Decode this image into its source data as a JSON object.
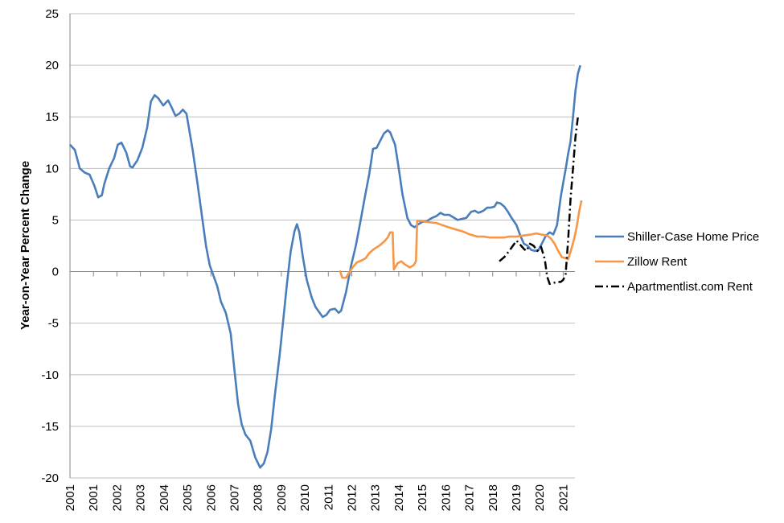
{
  "chart_data": {
    "type": "line",
    "title": "",
    "xlabel": "",
    "ylabel": "Year-on-Year Percent Change",
    "ylim": [
      -20,
      25
    ],
    "yticks": [
      25,
      20,
      15,
      10,
      5,
      0,
      -5,
      -10,
      -15,
      -20
    ],
    "yticklabels": [
      "25",
      "20",
      "15",
      "10",
      "5",
      "0",
      "-5",
      "-10",
      "-15",
      "-20"
    ],
    "xlim": [
      2001,
      2021.58
    ],
    "xticklabels": [
      "2001",
      "2001",
      "2002",
      "2003",
      "2004",
      "2005",
      "2006",
      "2007",
      "2008",
      "2009",
      "2010",
      "2011",
      "2012",
      "2013",
      "2014",
      "2015",
      "2016",
      "2017",
      "2018",
      "2019",
      "2020",
      "2021"
    ],
    "grid": true,
    "legend_position": "right",
    "series": [
      {
        "name": "Shiller-Case Home Price",
        "color": "#4a7ebb",
        "style": "solid",
        "points": [
          [
            2001.0,
            12.3
          ],
          [
            2001.2,
            11.8
          ],
          [
            2001.4,
            10.0
          ],
          [
            2001.6,
            9.6
          ],
          [
            2001.8,
            9.4
          ],
          [
            2002.0,
            8.3
          ],
          [
            2002.15,
            7.2
          ],
          [
            2002.3,
            7.4
          ],
          [
            2002.4,
            8.5
          ],
          [
            2002.6,
            10.0
          ],
          [
            2002.8,
            11.0
          ],
          [
            2002.95,
            12.3
          ],
          [
            2003.1,
            12.5
          ],
          [
            2003.3,
            11.5
          ],
          [
            2003.45,
            10.2
          ],
          [
            2003.55,
            10.1
          ],
          [
            2003.75,
            10.8
          ],
          [
            2003.95,
            12.0
          ],
          [
            2004.15,
            14.0
          ],
          [
            2004.3,
            16.5
          ],
          [
            2004.45,
            17.1
          ],
          [
            2004.6,
            16.8
          ],
          [
            2004.8,
            16.1
          ],
          [
            2005.0,
            16.6
          ],
          [
            2005.15,
            15.9
          ],
          [
            2005.3,
            15.1
          ],
          [
            2005.45,
            15.3
          ],
          [
            2005.6,
            15.7
          ],
          [
            2005.75,
            15.3
          ],
          [
            2005.85,
            13.9
          ],
          [
            2006.0,
            11.8
          ],
          [
            2006.2,
            8.5
          ],
          [
            2006.4,
            5.0
          ],
          [
            2006.55,
            2.4
          ],
          [
            2006.7,
            0.6
          ],
          [
            2006.85,
            -0.4
          ],
          [
            2007.0,
            -1.4
          ],
          [
            2007.15,
            -2.9
          ],
          [
            2007.35,
            -4.0
          ],
          [
            2007.55,
            -6.0
          ],
          [
            2007.7,
            -9.5
          ],
          [
            2007.85,
            -12.8
          ],
          [
            2008.0,
            -14.8
          ],
          [
            2008.15,
            -15.8
          ],
          [
            2008.35,
            -16.4
          ],
          [
            2008.55,
            -18.0
          ],
          [
            2008.75,
            -19.0
          ],
          [
            2008.9,
            -18.6
          ],
          [
            2009.05,
            -17.5
          ],
          [
            2009.2,
            -15.3
          ],
          [
            2009.35,
            -12.0
          ],
          [
            2009.55,
            -8.0
          ],
          [
            2009.7,
            -4.5
          ],
          [
            2009.85,
            -1.0
          ],
          [
            2010.0,
            2.0
          ],
          [
            2010.15,
            3.9
          ],
          [
            2010.25,
            4.6
          ],
          [
            2010.35,
            3.8
          ],
          [
            2010.5,
            1.3
          ],
          [
            2010.65,
            -0.8
          ],
          [
            2010.85,
            -2.5
          ],
          [
            2011.0,
            -3.4
          ],
          [
            2011.15,
            -3.9
          ],
          [
            2011.3,
            -4.4
          ],
          [
            2011.45,
            -4.2
          ],
          [
            2011.6,
            -3.7
          ],
          [
            2011.8,
            -3.6
          ],
          [
            2011.95,
            -4.0
          ],
          [
            2012.05,
            -3.8
          ],
          [
            2012.25,
            -2.0
          ],
          [
            2012.45,
            0.5
          ],
          [
            2012.65,
            2.5
          ],
          [
            2012.85,
            5.0
          ],
          [
            2013.0,
            7.0
          ],
          [
            2013.2,
            9.5
          ],
          [
            2013.35,
            11.9
          ],
          [
            2013.5,
            12.0
          ],
          [
            2013.65,
            12.7
          ],
          [
            2013.8,
            13.4
          ],
          [
            2013.95,
            13.7
          ],
          [
            2014.05,
            13.5
          ],
          [
            2014.25,
            12.3
          ],
          [
            2014.4,
            10.0
          ],
          [
            2014.55,
            7.5
          ],
          [
            2014.75,
            5.2
          ],
          [
            2014.9,
            4.5
          ],
          [
            2015.05,
            4.3
          ],
          [
            2015.2,
            4.6
          ],
          [
            2015.35,
            4.8
          ],
          [
            2015.55,
            4.9
          ],
          [
            2015.75,
            5.2
          ],
          [
            2015.95,
            5.4
          ],
          [
            2016.1,
            5.7
          ],
          [
            2016.25,
            5.5
          ],
          [
            2016.45,
            5.5
          ],
          [
            2016.6,
            5.3
          ],
          [
            2016.8,
            5.0
          ],
          [
            2016.95,
            5.1
          ],
          [
            2017.15,
            5.2
          ],
          [
            2017.35,
            5.8
          ],
          [
            2017.5,
            5.9
          ],
          [
            2017.65,
            5.7
          ],
          [
            2017.85,
            5.9
          ],
          [
            2018.0,
            6.2
          ],
          [
            2018.15,
            6.2
          ],
          [
            2018.3,
            6.3
          ],
          [
            2018.4,
            6.7
          ],
          [
            2018.55,
            6.6
          ],
          [
            2018.7,
            6.3
          ],
          [
            2018.85,
            5.8
          ],
          [
            2019.0,
            5.2
          ],
          [
            2019.2,
            4.5
          ],
          [
            2019.35,
            3.5
          ],
          [
            2019.5,
            2.7
          ],
          [
            2019.65,
            2.5
          ],
          [
            2019.8,
            2.1
          ],
          [
            2019.95,
            2.0
          ],
          [
            2020.1,
            2.1
          ],
          [
            2020.25,
            2.8
          ],
          [
            2020.4,
            3.5
          ],
          [
            2020.55,
            3.8
          ],
          [
            2020.7,
            3.6
          ],
          [
            2020.85,
            4.5
          ],
          [
            2021.0,
            7.2
          ],
          [
            2021.1,
            8.6
          ],
          [
            2021.2,
            9.9
          ],
          [
            2021.3,
            11.4
          ],
          [
            2021.4,
            12.6
          ],
          [
            2021.5,
            15.0
          ],
          [
            2021.6,
            17.5
          ],
          [
            2021.7,
            19.2
          ],
          [
            2021.8,
            20.0
          ]
        ]
      },
      {
        "name": "Zillow Rent",
        "color": "#f79646",
        "style": "solid",
        "points": [
          [
            2012.0,
            0.1
          ],
          [
            2012.1,
            -0.6
          ],
          [
            2012.25,
            -0.6
          ],
          [
            2012.4,
            0.0
          ],
          [
            2012.55,
            0.5
          ],
          [
            2012.7,
            0.9
          ],
          [
            2012.9,
            1.1
          ],
          [
            2013.05,
            1.3
          ],
          [
            2013.2,
            1.8
          ],
          [
            2013.4,
            2.2
          ],
          [
            2013.6,
            2.5
          ],
          [
            2013.8,
            2.9
          ],
          [
            2013.95,
            3.3
          ],
          [
            2014.05,
            3.8
          ],
          [
            2014.15,
            3.8
          ],
          [
            2014.2,
            0.2
          ],
          [
            2014.35,
            0.8
          ],
          [
            2014.5,
            1.0
          ],
          [
            2014.65,
            0.7
          ],
          [
            2014.85,
            0.4
          ],
          [
            2015.0,
            0.6
          ],
          [
            2015.1,
            1.0
          ],
          [
            2015.15,
            4.9
          ],
          [
            2015.3,
            4.9
          ],
          [
            2015.6,
            4.8
          ],
          [
            2015.95,
            4.7
          ],
          [
            2016.3,
            4.4
          ],
          [
            2016.7,
            4.1
          ],
          [
            2017.0,
            3.9
          ],
          [
            2017.3,
            3.6
          ],
          [
            2017.6,
            3.4
          ],
          [
            2017.85,
            3.4
          ],
          [
            2018.1,
            3.3
          ],
          [
            2018.4,
            3.3
          ],
          [
            2018.7,
            3.3
          ],
          [
            2018.9,
            3.4
          ],
          [
            2019.2,
            3.4
          ],
          [
            2019.5,
            3.5
          ],
          [
            2019.8,
            3.6
          ],
          [
            2020.0,
            3.7
          ],
          [
            2020.2,
            3.6
          ],
          [
            2020.45,
            3.5
          ],
          [
            2020.6,
            3.2
          ],
          [
            2020.75,
            2.7
          ],
          [
            2020.9,
            2.0
          ],
          [
            2021.05,
            1.4
          ],
          [
            2021.2,
            1.3
          ],
          [
            2021.3,
            1.2
          ],
          [
            2021.4,
            1.9
          ],
          [
            2021.55,
            3.2
          ],
          [
            2021.65,
            4.3
          ],
          [
            2021.75,
            5.8
          ],
          [
            2021.85,
            6.9
          ]
        ]
      },
      {
        "name": "Apartmentlist.com Rent",
        "color": "#000000",
        "style": "dashdot",
        "points": [
          [
            2018.5,
            1.0
          ],
          [
            2018.7,
            1.4
          ],
          [
            2018.9,
            2.0
          ],
          [
            2019.05,
            2.5
          ],
          [
            2019.2,
            3.0
          ],
          [
            2019.35,
            2.6
          ],
          [
            2019.5,
            2.2
          ],
          [
            2019.6,
            2.0
          ],
          [
            2019.75,
            2.7
          ],
          [
            2019.9,
            2.5
          ],
          [
            2020.05,
            2.0
          ],
          [
            2020.2,
            2.4
          ],
          [
            2020.35,
            1.2
          ],
          [
            2020.45,
            -0.5
          ],
          [
            2020.55,
            -1.2
          ],
          [
            2020.7,
            -1.1
          ],
          [
            2020.85,
            -1.0
          ],
          [
            2021.0,
            -1.0
          ],
          [
            2021.1,
            -0.8
          ],
          [
            2021.2,
            -0.3
          ],
          [
            2021.3,
            3.0
          ],
          [
            2021.4,
            7.0
          ],
          [
            2021.5,
            10.0
          ],
          [
            2021.6,
            13.0
          ],
          [
            2021.7,
            15.0
          ]
        ]
      }
    ]
  }
}
